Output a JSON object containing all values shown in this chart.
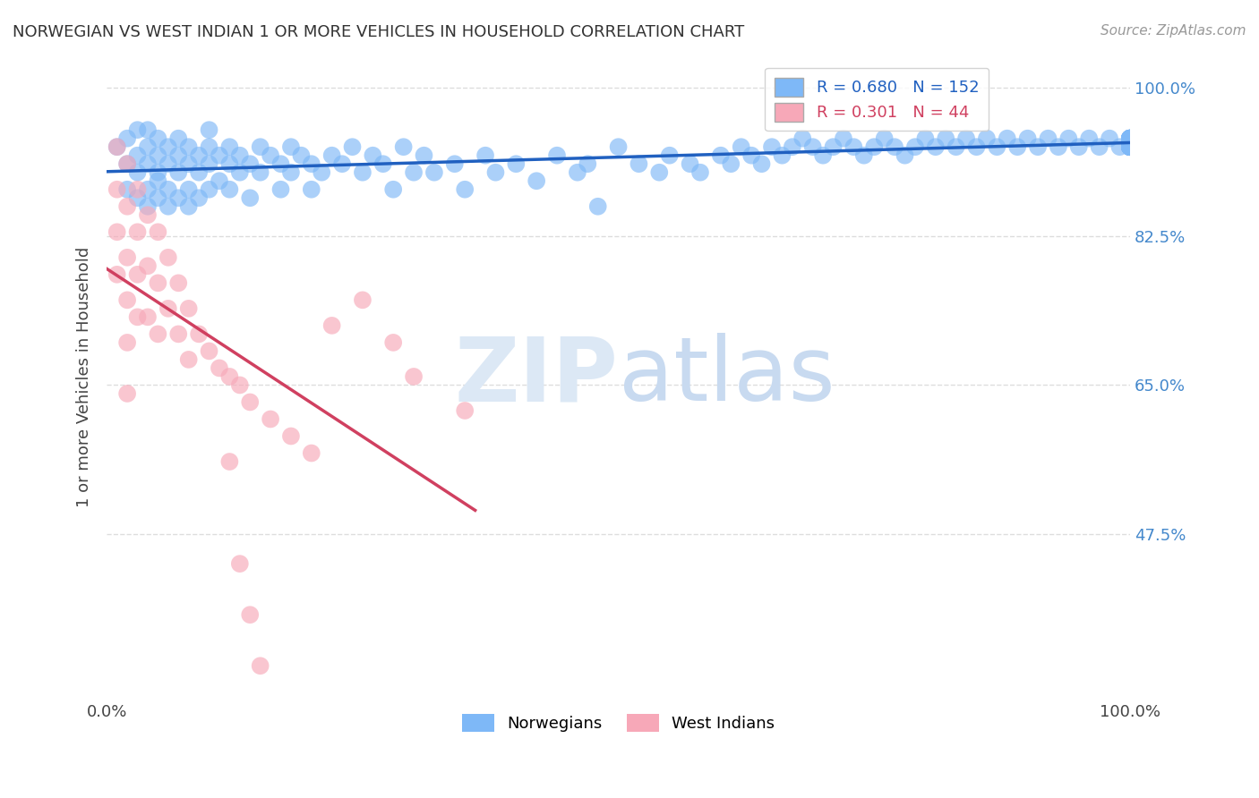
{
  "title": "NORWEGIAN VS WEST INDIAN 1 OR MORE VEHICLES IN HOUSEHOLD CORRELATION CHART",
  "source": "Source: ZipAtlas.com",
  "ylabel": "1 or more Vehicles in Household",
  "xlim": [
    0.0,
    1.0
  ],
  "ylim": [
    0.28,
    1.04
  ],
  "yticks": [
    0.475,
    0.65,
    0.825,
    1.0
  ],
  "ytick_labels": [
    "47.5%",
    "65.0%",
    "82.5%",
    "100.0%"
  ],
  "xticks": [
    0.0,
    0.125,
    0.25,
    0.375,
    0.5,
    0.625,
    0.75,
    0.875,
    1.0
  ],
  "norwegian_R": 0.68,
  "norwegian_N": 152,
  "westindian_R": 0.301,
  "westindian_N": 44,
  "norwegian_color": "#7eb8f7",
  "westindian_color": "#f7a8b8",
  "norwegian_line_color": "#2060c0",
  "westindian_line_color": "#d04060",
  "background_color": "#ffffff",
  "grid_color": "#dddddd",
  "watermark_color": "#dce8f5",
  "right_label_color": "#4488cc",
  "title_color": "#333333",
  "source_color": "#999999",
  "norwegian_x": [
    0.01,
    0.02,
    0.02,
    0.02,
    0.03,
    0.03,
    0.03,
    0.03,
    0.04,
    0.04,
    0.04,
    0.04,
    0.04,
    0.05,
    0.05,
    0.05,
    0.05,
    0.05,
    0.06,
    0.06,
    0.06,
    0.06,
    0.07,
    0.07,
    0.07,
    0.07,
    0.08,
    0.08,
    0.08,
    0.08,
    0.09,
    0.09,
    0.09,
    0.1,
    0.1,
    0.1,
    0.1,
    0.11,
    0.11,
    0.12,
    0.12,
    0.12,
    0.13,
    0.13,
    0.14,
    0.14,
    0.15,
    0.15,
    0.16,
    0.17,
    0.17,
    0.18,
    0.18,
    0.19,
    0.2,
    0.2,
    0.21,
    0.22,
    0.23,
    0.24,
    0.25,
    0.26,
    0.27,
    0.28,
    0.29,
    0.3,
    0.31,
    0.32,
    0.34,
    0.35,
    0.37,
    0.38,
    0.4,
    0.42,
    0.44,
    0.46,
    0.47,
    0.48,
    0.5,
    0.52,
    0.54,
    0.55,
    0.57,
    0.58,
    0.6,
    0.61,
    0.62,
    0.63,
    0.64,
    0.65,
    0.66,
    0.67,
    0.68,
    0.69,
    0.7,
    0.71,
    0.72,
    0.73,
    0.74,
    0.75,
    0.76,
    0.77,
    0.78,
    0.79,
    0.8,
    0.81,
    0.82,
    0.83,
    0.84,
    0.85,
    0.86,
    0.87,
    0.88,
    0.89,
    0.9,
    0.91,
    0.92,
    0.93,
    0.94,
    0.95,
    0.96,
    0.97,
    0.98,
    0.99,
    1.0,
    1.0,
    1.0,
    1.0,
    1.0,
    1.0,
    1.0,
    1.0,
    1.0,
    1.0,
    1.0,
    1.0,
    1.0,
    1.0,
    1.0,
    1.0,
    1.0,
    1.0,
    1.0,
    1.0,
    1.0,
    1.0,
    1.0,
    1.0,
    1.0,
    1.0,
    1.0,
    1.0
  ],
  "norwegian_y": [
    0.93,
    0.91,
    0.94,
    0.88,
    0.92,
    0.9,
    0.95,
    0.87,
    0.91,
    0.93,
    0.88,
    0.95,
    0.86,
    0.92,
    0.9,
    0.94,
    0.87,
    0.89,
    0.91,
    0.93,
    0.88,
    0.86,
    0.92,
    0.9,
    0.94,
    0.87,
    0.91,
    0.93,
    0.88,
    0.86,
    0.92,
    0.9,
    0.87,
    0.91,
    0.93,
    0.88,
    0.95,
    0.92,
    0.89,
    0.91,
    0.93,
    0.88,
    0.9,
    0.92,
    0.91,
    0.87,
    0.93,
    0.9,
    0.92,
    0.91,
    0.88,
    0.93,
    0.9,
    0.92,
    0.91,
    0.88,
    0.9,
    0.92,
    0.91,
    0.93,
    0.9,
    0.92,
    0.91,
    0.88,
    0.93,
    0.9,
    0.92,
    0.9,
    0.91,
    0.88,
    0.92,
    0.9,
    0.91,
    0.89,
    0.92,
    0.9,
    0.91,
    0.86,
    0.93,
    0.91,
    0.9,
    0.92,
    0.91,
    0.9,
    0.92,
    0.91,
    0.93,
    0.92,
    0.91,
    0.93,
    0.92,
    0.93,
    0.94,
    0.93,
    0.92,
    0.93,
    0.94,
    0.93,
    0.92,
    0.93,
    0.94,
    0.93,
    0.92,
    0.93,
    0.94,
    0.93,
    0.94,
    0.93,
    0.94,
    0.93,
    0.94,
    0.93,
    0.94,
    0.93,
    0.94,
    0.93,
    0.94,
    0.93,
    0.94,
    0.93,
    0.94,
    0.93,
    0.94,
    0.93,
    0.94,
    0.93,
    0.94,
    0.93,
    0.94,
    0.93,
    0.94,
    0.93,
    0.94,
    0.93,
    0.94,
    0.93,
    0.94,
    0.93,
    0.94,
    0.93,
    0.94,
    0.93,
    0.94,
    0.93,
    0.94,
    0.93,
    0.94,
    0.93,
    0.94,
    0.93,
    0.94,
    0.93
  ],
  "westindian_x": [
    0.01,
    0.01,
    0.01,
    0.01,
    0.02,
    0.02,
    0.02,
    0.02,
    0.02,
    0.02,
    0.03,
    0.03,
    0.03,
    0.03,
    0.04,
    0.04,
    0.04,
    0.05,
    0.05,
    0.05,
    0.06,
    0.06,
    0.07,
    0.07,
    0.08,
    0.08,
    0.09,
    0.1,
    0.11,
    0.12,
    0.13,
    0.14,
    0.16,
    0.18,
    0.2,
    0.22,
    0.25,
    0.28,
    0.3,
    0.35,
    0.12,
    0.13,
    0.14,
    0.15
  ],
  "westindian_y": [
    0.93,
    0.88,
    0.83,
    0.78,
    0.91,
    0.86,
    0.8,
    0.75,
    0.7,
    0.64,
    0.88,
    0.83,
    0.78,
    0.73,
    0.85,
    0.79,
    0.73,
    0.83,
    0.77,
    0.71,
    0.8,
    0.74,
    0.77,
    0.71,
    0.74,
    0.68,
    0.71,
    0.69,
    0.67,
    0.66,
    0.65,
    0.63,
    0.61,
    0.59,
    0.57,
    0.72,
    0.75,
    0.7,
    0.66,
    0.62,
    0.56,
    0.44,
    0.38,
    0.32
  ]
}
